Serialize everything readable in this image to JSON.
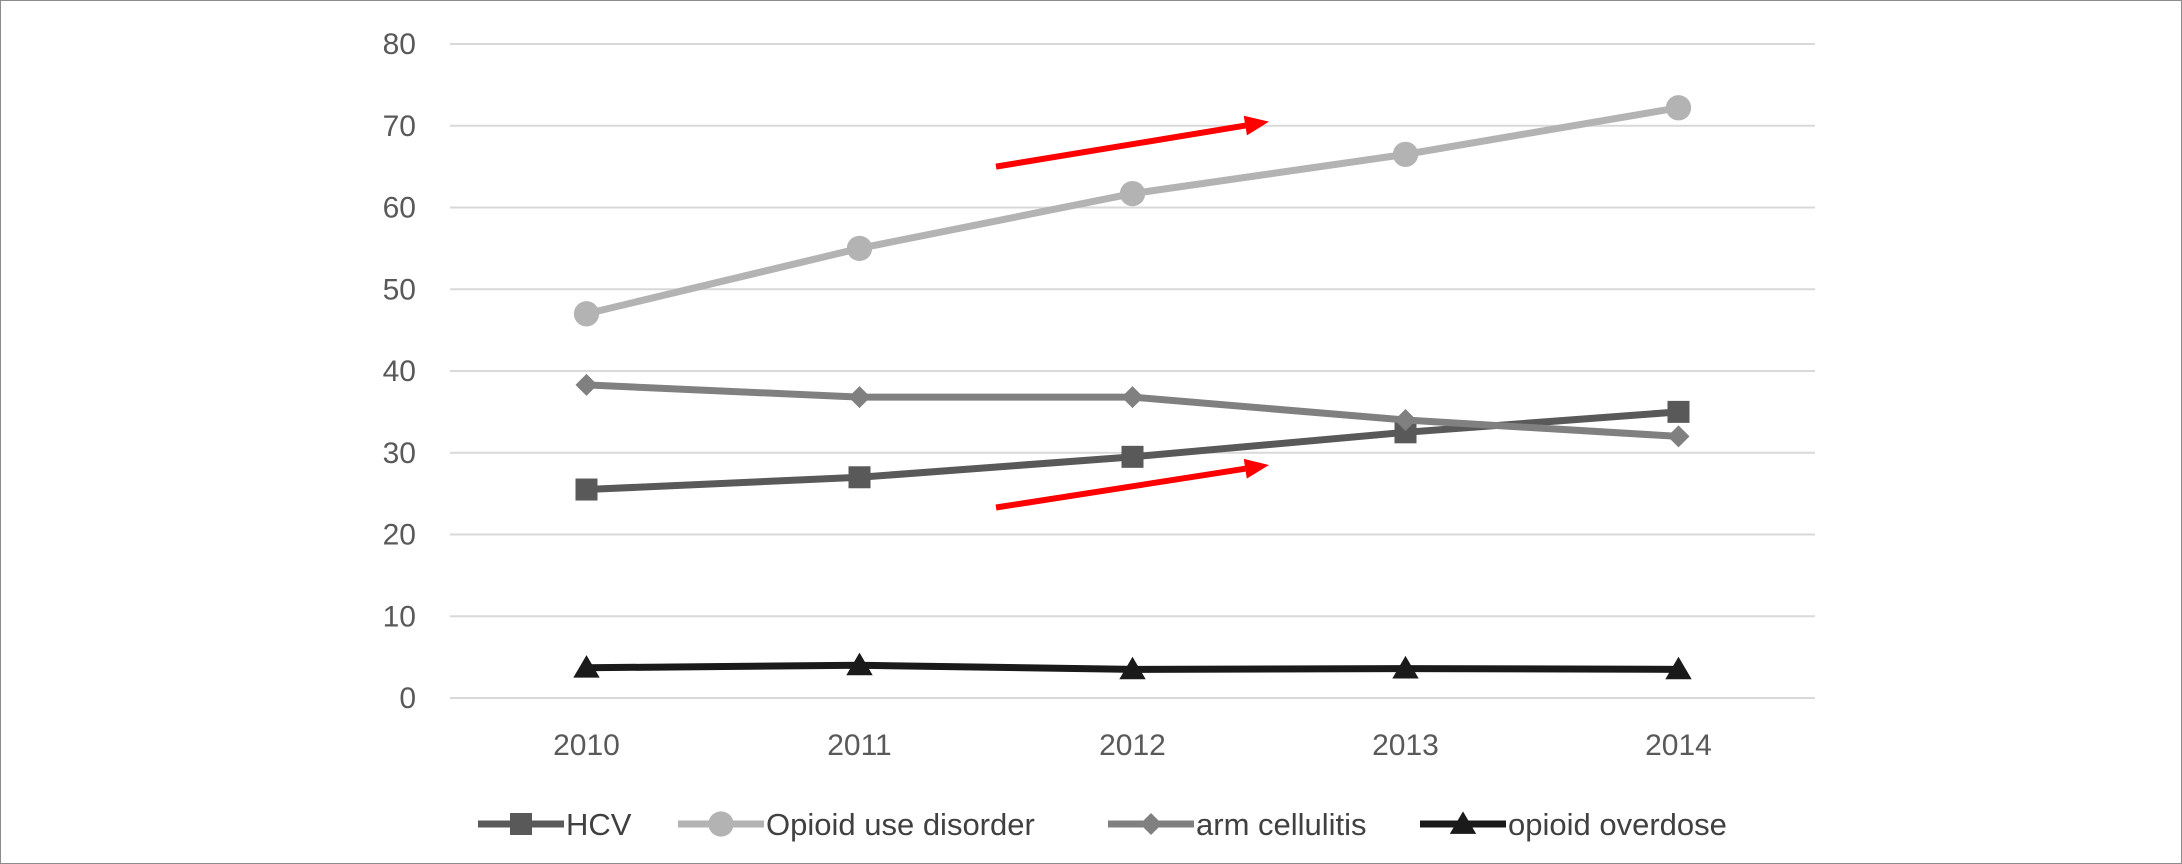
{
  "chart_data": {
    "type": "line",
    "x": [
      "2010",
      "2011",
      "2012",
      "2013",
      "2014"
    ],
    "ylim": [
      0,
      80
    ],
    "yticks": [
      "0",
      "10",
      "20",
      "30",
      "40",
      "50",
      "60",
      "70",
      "80"
    ],
    "grid": true,
    "legend_position": "bottom",
    "series": [
      {
        "name": "HCV",
        "values": [
          25.5,
          27,
          29.5,
          32.5,
          35
        ],
        "color": "#595959",
        "marker": "square"
      },
      {
        "name": "Opioid use disorder",
        "values": [
          47,
          55,
          61.7,
          66.5,
          72.2
        ],
        "color": "#b3b3b3",
        "marker": "circle"
      },
      {
        "name": "arm cellulitis",
        "values": [
          38.3,
          36.8,
          36.8,
          34,
          32
        ],
        "color": "#808080",
        "marker": "diamond"
      },
      {
        "name": "opioid overdose",
        "values": [
          3.7,
          4,
          3.5,
          3.6,
          3.5
        ],
        "color": "#1a1a1a",
        "marker": "triangle"
      }
    ],
    "annotations": [
      {
        "type": "arrow",
        "color": "#ff0000",
        "from": [
          2011.5,
          65
        ],
        "to": [
          2012.5,
          70.5
        ]
      },
      {
        "type": "arrow",
        "color": "#ff0000",
        "from": [
          2011.5,
          23.3
        ],
        "to": [
          2012.5,
          28.5
        ]
      }
    ]
  }
}
